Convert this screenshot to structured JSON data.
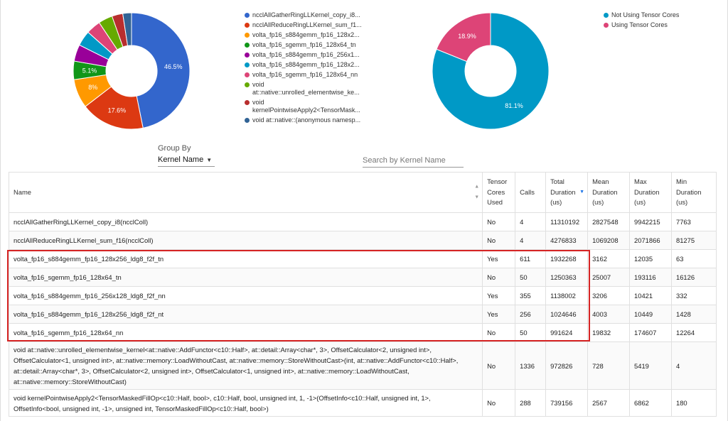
{
  "chart_data": [
    {
      "type": "pie",
      "donut": true,
      "slices": [
        {
          "label": "ncclAllGatherRingLLKernel_copy_i8...",
          "value": 46.5,
          "value_label": "46.5%",
          "color": "#3366cc"
        },
        {
          "label": "ncclAllReduceRingLLKernel_sum_f1...",
          "value": 17.6,
          "value_label": "17.6%",
          "color": "#dc3912"
        },
        {
          "label": "volta_fp16_s884gemm_fp16_128x2...",
          "value": 8.0,
          "value_label": "8%",
          "color": "#ff9900"
        },
        {
          "label": "volta_fp16_sgemm_fp16_128x64_tn",
          "value": 5.1,
          "value_label": "5.1%",
          "color": "#109618"
        },
        {
          "label": "volta_fp16_s884gemm_fp16_256x1...",
          "value": 4.6,
          "value_label": "",
          "color": "#990099"
        },
        {
          "label": "volta_fp16_s884gemm_fp16_128x2...",
          "value": 4.2,
          "value_label": "",
          "color": "#0099c6"
        },
        {
          "label": "volta_fp16_sgemm_fp16_128x64_nn",
          "value": 4.0,
          "value_label": "",
          "color": "#dd4477"
        },
        {
          "label": "void at::native::unrolled_elementwise_ke...",
          "value": 3.9,
          "value_label": "",
          "color": "#66aa00"
        },
        {
          "label": "void kernelPointwiseApply2<TensorMask...",
          "value": 3.0,
          "value_label": "",
          "color": "#b82e2e"
        },
        {
          "label": "void at::native::(anonymous namesp...",
          "value": 2.4,
          "value_label": "",
          "color": "#316395"
        }
      ]
    },
    {
      "type": "pie",
      "donut": true,
      "slices": [
        {
          "label": "Not Using Tensor Cores",
          "value": 81.1,
          "value_label": "81.1%",
          "color": "#0099c6"
        },
        {
          "label": "Using Tensor Cores",
          "value": 18.9,
          "value_label": "18.9%",
          "color": "#dd4477"
        }
      ]
    }
  ],
  "group_by": {
    "label": "Group By",
    "value": "Kernel Name"
  },
  "search": {
    "placeholder": "Search by Kernel Name"
  },
  "table": {
    "headers": {
      "name": "Name",
      "tc": "Tensor Cores Used",
      "calls": "Calls",
      "total": "Total Duration (us)",
      "mean": "Mean Duration (us)",
      "max": "Max Duration (us)",
      "min": "Min Duration (us)"
    },
    "rows": [
      {
        "name": "ncclAllGatherRingLLKernel_copy_i8(ncclColl)",
        "tc": "No",
        "calls": "4",
        "total": "11310192",
        "mean": "2827548",
        "max": "9942215",
        "min": "7763"
      },
      {
        "name": "ncclAllReduceRingLLKernel_sum_f16(ncclColl)",
        "tc": "No",
        "calls": "4",
        "total": "4276833",
        "mean": "1069208",
        "max": "2071866",
        "min": "81275"
      },
      {
        "name": "volta_fp16_s884gemm_fp16_128x256_ldg8_f2f_tn",
        "tc": "Yes",
        "calls": "611",
        "total": "1932268",
        "mean": "3162",
        "max": "12035",
        "min": "63"
      },
      {
        "name": "volta_fp16_sgemm_fp16_128x64_tn",
        "tc": "No",
        "calls": "50",
        "total": "1250363",
        "mean": "25007",
        "max": "193116",
        "min": "16126"
      },
      {
        "name": "volta_fp16_s884gemm_fp16_256x128_ldg8_f2f_nn",
        "tc": "Yes",
        "calls": "355",
        "total": "1138002",
        "mean": "3206",
        "max": "10421",
        "min": "332"
      },
      {
        "name": "volta_fp16_s884gemm_fp16_128x256_ldg8_f2f_nt",
        "tc": "Yes",
        "calls": "256",
        "total": "1024646",
        "mean": "4003",
        "max": "10449",
        "min": "1428"
      },
      {
        "name": "volta_fp16_sgemm_fp16_128x64_nn",
        "tc": "No",
        "calls": "50",
        "total": "991624",
        "mean": "19832",
        "max": "174607",
        "min": "12264"
      },
      {
        "name": "void at::native::unrolled_elementwise_kernel<at::native::AddFunctor<c10::Half>, at::detail::Array<char*, 3>, OffsetCalculator<2, unsigned int>, OffsetCalculator<1, unsigned int>, at::native::memory::LoadWithoutCast, at::native::memory::StoreWithoutCast>(int, at::native::AddFunctor<c10::Half>, at::detail::Array<char*, 3>, OffsetCalculator<2, unsigned int>, OffsetCalculator<1, unsigned int>, at::native::memory::LoadWithoutCast, at::native::memory::StoreWithoutCast)",
        "tc": "No",
        "calls": "1336",
        "total": "972826",
        "mean": "728",
        "max": "5419",
        "min": "4"
      },
      {
        "name": "void kernelPointwiseApply2<TensorMaskedFillOp<c10::Half, bool>, c10::Half, bool, unsigned int, 1, -1>(OffsetInfo<c10::Half, unsigned int, 1>, OffsetInfo<bool, unsigned int, -1>, unsigned int, TensorMaskedFillOp<c10::Half, bool>)",
        "tc": "No",
        "calls": "288",
        "total": "739156",
        "mean": "2567",
        "max": "6862",
        "min": "180"
      }
    ]
  },
  "colors": {
    "highlight": "#d62424",
    "sort_active": "#1a73e8"
  }
}
